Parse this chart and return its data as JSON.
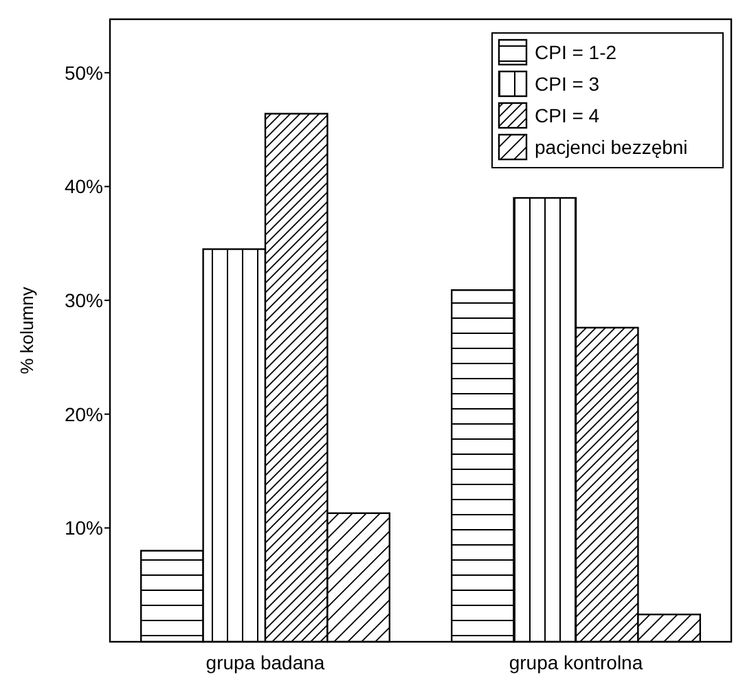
{
  "chart_data": {
    "type": "bar",
    "ylabel": "% kolumny",
    "categories": [
      "grupa badana",
      "grupa kontrolna"
    ],
    "series": [
      {
        "name": "CPI = 1-2",
        "color": "#000000",
        "values": [
          8.0,
          30.9
        ]
      },
      {
        "name": "CPI = 3",
        "color": "#000000",
        "values": [
          34.5,
          39.0
        ]
      },
      {
        "name": "CPI = 4",
        "color": "#000000",
        "values": [
          46.4,
          27.6
        ]
      },
      {
        "name": "pacjenci bezzębni",
        "color": "#000000",
        "values": [
          11.3,
          2.4
        ]
      }
    ],
    "ylim": [
      0,
      54.7
    ],
    "yticks": [
      {
        "value": 10,
        "label": "10%"
      },
      {
        "value": 20,
        "label": "20%"
      },
      {
        "value": 30,
        "label": "30%"
      },
      {
        "value": 40,
        "label": "40%"
      },
      {
        "value": 50,
        "label": "50%"
      }
    ],
    "grid": false,
    "legend": "top right"
  }
}
